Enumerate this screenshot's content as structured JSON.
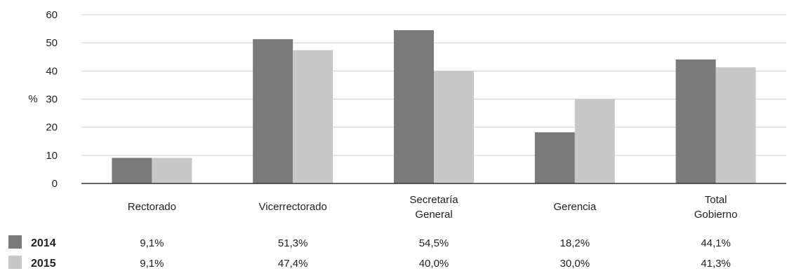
{
  "chart_data": {
    "type": "bar",
    "ylabel": "%",
    "ylim": [
      0,
      60
    ],
    "yticks": [
      0,
      10,
      20,
      30,
      40,
      50,
      60
    ],
    "grid": true,
    "categories": [
      [
        "Rectorado"
      ],
      [
        "Vicerrectorado"
      ],
      [
        "Secretaría",
        "General"
      ],
      [
        "Gerencia"
      ],
      [
        "Total",
        "Gobierno"
      ]
    ],
    "series": [
      {
        "name": "2014",
        "color": "#7a7a7a",
        "values": [
          9.1,
          51.3,
          54.5,
          18.2,
          44.1
        ],
        "labels": [
          "9,1%",
          "51,3%",
          "54,5%",
          "18,2%",
          "44,1%"
        ]
      },
      {
        "name": "2015",
        "color": "#c8c8c8",
        "values": [
          9.1,
          47.4,
          40.0,
          30.0,
          41.3
        ],
        "labels": [
          "9,1%",
          "47,4%",
          "40,0%",
          "30,0%",
          "41,3%"
        ]
      }
    ]
  }
}
